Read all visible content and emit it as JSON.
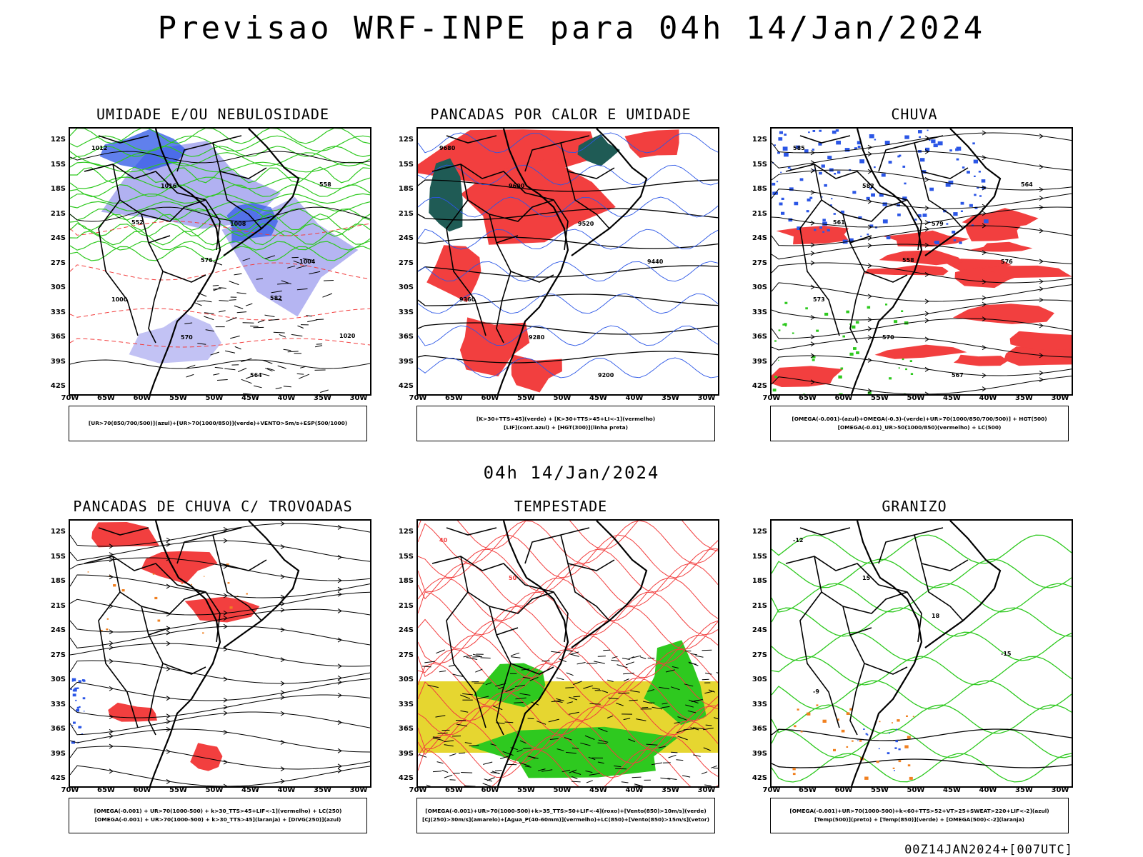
{
  "page": {
    "title": "Previsao WRF-INPE  para 04h 14/Jan/2024",
    "subtitle": "04h 14/Jan/2024",
    "footer": "00Z14JAN2024+[007UTC]"
  },
  "axes": {
    "lat_labels": [
      "12S",
      "15S",
      "18S",
      "21S",
      "24S",
      "27S",
      "30S",
      "33S",
      "36S",
      "39S",
      "42S"
    ],
    "lon_labels": [
      "70W",
      "65W",
      "60W",
      "55W",
      "50W",
      "45W",
      "40W",
      "35W",
      "30W"
    ]
  },
  "panels": [
    {
      "id": "umidade",
      "title": "UMIDADE E/OU NEBULOSIDADE",
      "legend": [
        "[UR>70(850/700/500)](azul)+[UR>70(1000/850)](verde)+VENTO>5m/s+ESP(500/1000)"
      ],
      "labels": [
        "1012",
        "1016",
        "1008",
        "1004",
        "1000",
        "570",
        "564",
        "558",
        "552",
        "576",
        "582",
        "1020"
      ]
    },
    {
      "id": "pancadas-calor",
      "title": "PANCADAS POR CALOR E UMIDADE",
      "legend": [
        "[K>30+TTS>45](verde)  +  [K>30+TTS>45+LI<-1](vermelho)",
        "[LIF](cont.azul)  +  [HGT(300)](linha preta)"
      ],
      "labels": [
        "9680",
        "9600",
        "9520",
        "9440",
        "9360",
        "9280",
        "9200"
      ]
    },
    {
      "id": "chuva",
      "title": "CHUVA",
      "legend": [
        "[OMEGA(-0.001)-(azul)+OMEGA(-0.3)-(verde)+UR>70(1000/850/700/500)]  +  HGT(500)",
        "[OMEGA(-0.01)_UR>50(1000/850)(vermelho)  +  LC(500)"
      ],
      "labels": [
        "585",
        "582",
        "579",
        "576",
        "573",
        "570",
        "567",
        "564",
        "561",
        "558"
      ]
    },
    {
      "id": "trovoadas",
      "title": "PANCADAS DE CHUVA C/ TROVOADAS",
      "legend": [
        "[OMEGA(-0.001)  +  UR>70(1000-500)  +  k>30_TTS>45+LIF<-1](vermelho)  +  LC(250)",
        "[OMEGA(-0.001)  +  UR>70(1000-500)  +  k>30_TTS>45](laranja)  +  [DIVG(250)](azul)"
      ],
      "labels": []
    },
    {
      "id": "tempestade",
      "title": "TEMPESTADE",
      "legend": [
        "[OMEGA(-0.001)+UR>70(1000-500)+k>35_TTS>50+LIF<-4](roxo)+[Vento(850)>10m/s](verde)",
        "[CJ(250)>30m/s](amarelo)+[Agua_P(40-60mm)](vermelho)+LC(850)+[Vento(850)>15m/s](vetor)"
      ],
      "labels": [
        "40",
        "50"
      ]
    },
    {
      "id": "granizo",
      "title": "GRANIZO",
      "legend": [
        "[OMEGA(-0.001)+UR>70(1000-500)+k<60+TTS>52+VT>25+SWEAT>220+LIF<-2](azul)",
        "[Temp(500)](preto)  +  [Temp(850)](verde)  +  [OMEGA(500)<-2](laranja)"
      ],
      "labels": [
        "-12",
        "15",
        "18",
        "-15",
        "-9"
      ]
    }
  ],
  "colors": {
    "red": "#f23f3f",
    "green": "#2ec91f",
    "blue": "#2b56e6",
    "lightblue": "#a8a8f0",
    "yellow": "#e6d630",
    "darkteal": "#1f5b55",
    "orange": "#f08020"
  }
}
